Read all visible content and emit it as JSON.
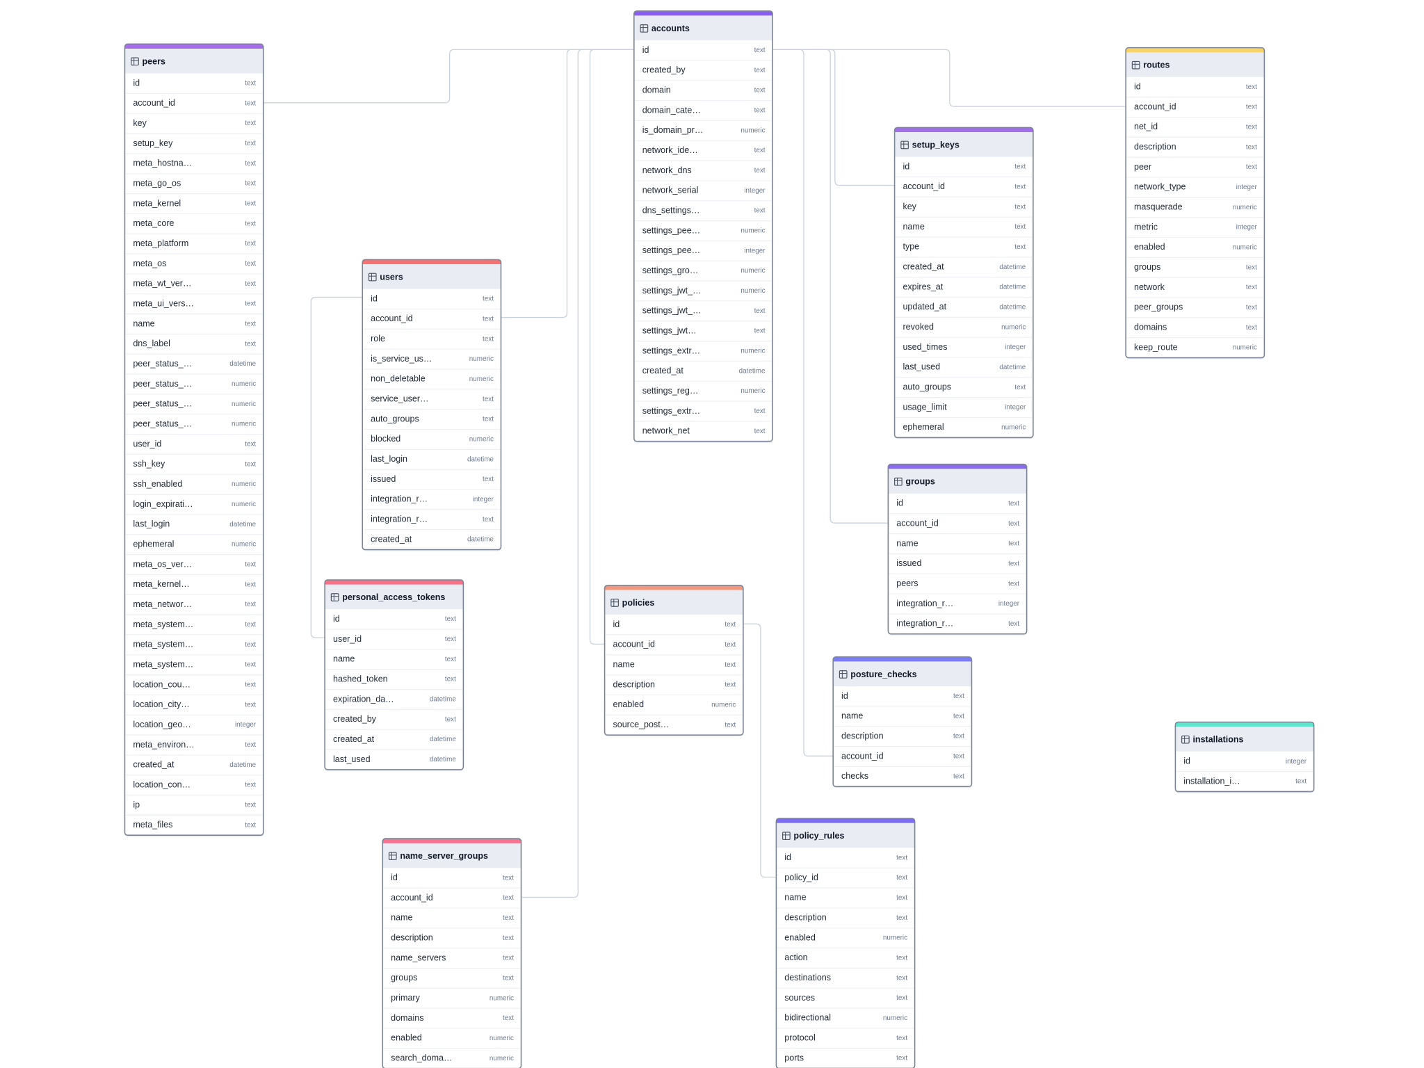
{
  "tables": [
    {
      "name": "peers",
      "color": "#a66ee8",
      "columns": [
        {
          "name": "id",
          "type": "text"
        },
        {
          "name": "account_id",
          "type": "text"
        },
        {
          "name": "key",
          "type": "text"
        },
        {
          "name": "setup_key",
          "type": "text"
        },
        {
          "name": "meta_hostna…",
          "type": "text"
        },
        {
          "name": "meta_go_os",
          "type": "text"
        },
        {
          "name": "meta_kernel",
          "type": "text"
        },
        {
          "name": "meta_core",
          "type": "text"
        },
        {
          "name": "meta_platform",
          "type": "text"
        },
        {
          "name": "meta_os",
          "type": "text"
        },
        {
          "name": "meta_wt_ver…",
          "type": "text"
        },
        {
          "name": "meta_ui_vers…",
          "type": "text"
        },
        {
          "name": "name",
          "type": "text"
        },
        {
          "name": "dns_label",
          "type": "text"
        },
        {
          "name": "peer_status_…",
          "type": "datetime"
        },
        {
          "name": "peer_status_…",
          "type": "numeric"
        },
        {
          "name": "peer_status_…",
          "type": "numeric"
        },
        {
          "name": "peer_status_…",
          "type": "numeric"
        },
        {
          "name": "user_id",
          "type": "text"
        },
        {
          "name": "ssh_key",
          "type": "text"
        },
        {
          "name": "ssh_enabled",
          "type": "numeric"
        },
        {
          "name": "login_expirati…",
          "type": "numeric"
        },
        {
          "name": "last_login",
          "type": "datetime"
        },
        {
          "name": "ephemeral",
          "type": "numeric"
        },
        {
          "name": "meta_os_ver…",
          "type": "text"
        },
        {
          "name": "meta_kernel…",
          "type": "text"
        },
        {
          "name": "meta_networ…",
          "type": "text"
        },
        {
          "name": "meta_system…",
          "type": "text"
        },
        {
          "name": "meta_system…",
          "type": "text"
        },
        {
          "name": "meta_system…",
          "type": "text"
        },
        {
          "name": "location_cou…",
          "type": "text"
        },
        {
          "name": "location_city…",
          "type": "text"
        },
        {
          "name": "location_geo…",
          "type": "integer"
        },
        {
          "name": "meta_environ…",
          "type": "text"
        },
        {
          "name": "created_at",
          "type": "datetime"
        },
        {
          "name": "location_con…",
          "type": "text"
        },
        {
          "name": "ip",
          "type": "text"
        },
        {
          "name": "meta_files",
          "type": "text"
        }
      ]
    },
    {
      "name": "accounts",
      "color": "#8b5cf6",
      "columns": [
        {
          "name": "id",
          "type": "text"
        },
        {
          "name": "created_by",
          "type": "text"
        },
        {
          "name": "domain",
          "type": "text"
        },
        {
          "name": "domain_cate…",
          "type": "text"
        },
        {
          "name": "is_domain_pr…",
          "type": "numeric"
        },
        {
          "name": "network_ide…",
          "type": "text"
        },
        {
          "name": "network_dns",
          "type": "text"
        },
        {
          "name": "network_serial",
          "type": "integer"
        },
        {
          "name": "dns_settings…",
          "type": "text"
        },
        {
          "name": "settings_pee…",
          "type": "numeric"
        },
        {
          "name": "settings_pee…",
          "type": "integer"
        },
        {
          "name": "settings_gro…",
          "type": "numeric"
        },
        {
          "name": "settings_jwt_…",
          "type": "numeric"
        },
        {
          "name": "settings_jwt_…",
          "type": "text"
        },
        {
          "name": "settings_jwt…",
          "type": "text"
        },
        {
          "name": "settings_extr…",
          "type": "numeric"
        },
        {
          "name": "created_at",
          "type": "datetime"
        },
        {
          "name": "settings_reg…",
          "type": "numeric"
        },
        {
          "name": "settings_extr…",
          "type": "text"
        },
        {
          "name": "network_net",
          "type": "text"
        }
      ]
    },
    {
      "name": "routes",
      "color": "#f7d46a",
      "columns": [
        {
          "name": "id",
          "type": "text"
        },
        {
          "name": "account_id",
          "type": "text"
        },
        {
          "name": "net_id",
          "type": "text"
        },
        {
          "name": "description",
          "type": "text"
        },
        {
          "name": "peer",
          "type": "text"
        },
        {
          "name": "network_type",
          "type": "integer"
        },
        {
          "name": "masquerade",
          "type": "numeric"
        },
        {
          "name": "metric",
          "type": "integer"
        },
        {
          "name": "enabled",
          "type": "numeric"
        },
        {
          "name": "groups",
          "type": "text"
        },
        {
          "name": "network",
          "type": "text"
        },
        {
          "name": "peer_groups",
          "type": "text"
        },
        {
          "name": "domains",
          "type": "text"
        },
        {
          "name": "keep_route",
          "type": "numeric"
        }
      ]
    },
    {
      "name": "setup_keys",
      "color": "#a06ee9",
      "columns": [
        {
          "name": "id",
          "type": "text"
        },
        {
          "name": "account_id",
          "type": "text"
        },
        {
          "name": "key",
          "type": "text"
        },
        {
          "name": "name",
          "type": "text"
        },
        {
          "name": "type",
          "type": "text"
        },
        {
          "name": "created_at",
          "type": "datetime"
        },
        {
          "name": "expires_at",
          "type": "datetime"
        },
        {
          "name": "updated_at",
          "type": "datetime"
        },
        {
          "name": "revoked",
          "type": "numeric"
        },
        {
          "name": "used_times",
          "type": "integer"
        },
        {
          "name": "last_used",
          "type": "datetime"
        },
        {
          "name": "auto_groups",
          "type": "text"
        },
        {
          "name": "usage_limit",
          "type": "integer"
        },
        {
          "name": "ephemeral",
          "type": "numeric"
        }
      ]
    },
    {
      "name": "users",
      "color": "#f87171",
      "columns": [
        {
          "name": "id",
          "type": "text"
        },
        {
          "name": "account_id",
          "type": "text"
        },
        {
          "name": "role",
          "type": "text"
        },
        {
          "name": "is_service_us…",
          "type": "numeric"
        },
        {
          "name": "non_deletable",
          "type": "numeric"
        },
        {
          "name": "service_user…",
          "type": "text"
        },
        {
          "name": "auto_groups",
          "type": "text"
        },
        {
          "name": "blocked",
          "type": "numeric"
        },
        {
          "name": "last_login",
          "type": "datetime"
        },
        {
          "name": "issued",
          "type": "text"
        },
        {
          "name": "integration_r…",
          "type": "integer"
        },
        {
          "name": "integration_r…",
          "type": "text"
        },
        {
          "name": "created_at",
          "type": "datetime"
        }
      ]
    },
    {
      "name": "groups",
      "color": "#8b6cf0",
      "columns": [
        {
          "name": "id",
          "type": "text"
        },
        {
          "name": "account_id",
          "type": "text"
        },
        {
          "name": "name",
          "type": "text"
        },
        {
          "name": "issued",
          "type": "text"
        },
        {
          "name": "peers",
          "type": "text"
        },
        {
          "name": "integration_r…",
          "type": "integer"
        },
        {
          "name": "integration_r…",
          "type": "text"
        }
      ]
    },
    {
      "name": "personal_access_tokens",
      "color": "#f87187",
      "columns": [
        {
          "name": "id",
          "type": "text"
        },
        {
          "name": "user_id",
          "type": "text"
        },
        {
          "name": "name",
          "type": "text"
        },
        {
          "name": "hashed_token",
          "type": "text"
        },
        {
          "name": "expiration_da…",
          "type": "datetime"
        },
        {
          "name": "created_by",
          "type": "text"
        },
        {
          "name": "created_at",
          "type": "datetime"
        },
        {
          "name": "last_used",
          "type": "datetime"
        }
      ]
    },
    {
      "name": "policies",
      "color": "#f5977a",
      "columns": [
        {
          "name": "id",
          "type": "text"
        },
        {
          "name": "account_id",
          "type": "text"
        },
        {
          "name": "name",
          "type": "text"
        },
        {
          "name": "description",
          "type": "text"
        },
        {
          "name": "enabled",
          "type": "numeric"
        },
        {
          "name": "source_post…",
          "type": "text"
        }
      ]
    },
    {
      "name": "posture_checks",
      "color": "#7c7cf6",
      "columns": [
        {
          "name": "id",
          "type": "text"
        },
        {
          "name": "name",
          "type": "text"
        },
        {
          "name": "description",
          "type": "text"
        },
        {
          "name": "account_id",
          "type": "text"
        },
        {
          "name": "checks",
          "type": "text"
        }
      ]
    },
    {
      "name": "installations",
      "color": "#5ee6cc",
      "columns": [
        {
          "name": "id",
          "type": "integer"
        },
        {
          "name": "installation_i…",
          "type": "text"
        }
      ]
    },
    {
      "name": "name_server_groups",
      "color": "#f8718f",
      "columns": [
        {
          "name": "id",
          "type": "text"
        },
        {
          "name": "account_id",
          "type": "text"
        },
        {
          "name": "name",
          "type": "text"
        },
        {
          "name": "description",
          "type": "text"
        },
        {
          "name": "name_servers",
          "type": "text"
        },
        {
          "name": "groups",
          "type": "text"
        },
        {
          "name": "primary",
          "type": "numeric"
        },
        {
          "name": "domains",
          "type": "text"
        },
        {
          "name": "enabled",
          "type": "numeric"
        },
        {
          "name": "search_doma…",
          "type": "numeric"
        }
      ]
    },
    {
      "name": "policy_rules",
      "color": "#7c6cf0",
      "columns": [
        {
          "name": "id",
          "type": "text"
        },
        {
          "name": "policy_id",
          "type": "text"
        },
        {
          "name": "name",
          "type": "text"
        },
        {
          "name": "description",
          "type": "text"
        },
        {
          "name": "enabled",
          "type": "numeric"
        },
        {
          "name": "action",
          "type": "text"
        },
        {
          "name": "destinations",
          "type": "text"
        },
        {
          "name": "sources",
          "type": "text"
        },
        {
          "name": "bidirectional",
          "type": "numeric"
        },
        {
          "name": "protocol",
          "type": "text"
        },
        {
          "name": "ports",
          "type": "text"
        }
      ]
    }
  ]
}
